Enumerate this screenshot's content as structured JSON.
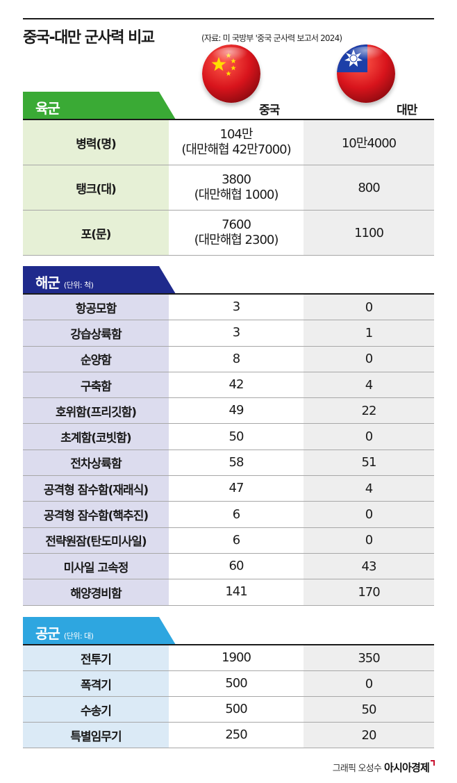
{
  "title": "중국-대만 군사력 비교",
  "source": "(자료: 미 국방부 '중국 군사력 보고서 2024)",
  "countries": {
    "china": "중국",
    "taiwan": "대만"
  },
  "colors": {
    "army": "#3aaa35",
    "navy": "#1f2a8c",
    "air": "#2ea6e0"
  },
  "army": {
    "title": "육군",
    "rows": [
      {
        "label": "병력(명)",
        "china": "104만",
        "china_sub": "(대만해협 42만7000)",
        "taiwan": "10만4000"
      },
      {
        "label": "탱크(대)",
        "china": "3800",
        "china_sub": "(대만해협 1000)",
        "taiwan": "800"
      },
      {
        "label": "포(문)",
        "china": "7600",
        "china_sub": "(대만해협 2300)",
        "taiwan": "1100"
      }
    ]
  },
  "navy": {
    "title": "해군",
    "unit": "(단위: 척)",
    "rows": [
      {
        "label": "항공모함",
        "china": "3",
        "taiwan": "0"
      },
      {
        "label": "강습상륙함",
        "china": "3",
        "taiwan": "1"
      },
      {
        "label": "순양함",
        "china": "8",
        "taiwan": "0"
      },
      {
        "label": "구축함",
        "china": "42",
        "taiwan": "4"
      },
      {
        "label": "호위함(프리깃함)",
        "china": "49",
        "taiwan": "22"
      },
      {
        "label": "초계함(코빗함)",
        "china": "50",
        "taiwan": "0"
      },
      {
        "label": "전차상륙함",
        "china": "58",
        "taiwan": "51"
      },
      {
        "label": "공격형 잠수함(재래식)",
        "china": "47",
        "taiwan": "4"
      },
      {
        "label": "공격형 잠수함(핵추진)",
        "china": "6",
        "taiwan": "0"
      },
      {
        "label": "전략원잠(탄도미사일)",
        "china": "6",
        "taiwan": "0"
      },
      {
        "label": "미사일 고속정",
        "china": "60",
        "taiwan": "43"
      },
      {
        "label": "해양경비함",
        "china": "141",
        "taiwan": "170"
      }
    ]
  },
  "air": {
    "title": "공군",
    "unit": "(단위: 대)",
    "rows": [
      {
        "label": "전투기",
        "china": "1900",
        "taiwan": "350"
      },
      {
        "label": "폭격기",
        "china": "500",
        "taiwan": "0"
      },
      {
        "label": "수송기",
        "china": "500",
        "taiwan": "50"
      },
      {
        "label": "특별임무기",
        "china": "250",
        "taiwan": "20"
      }
    ]
  },
  "credit": {
    "text": "그래픽 오성수",
    "brand": "아시아경제"
  }
}
